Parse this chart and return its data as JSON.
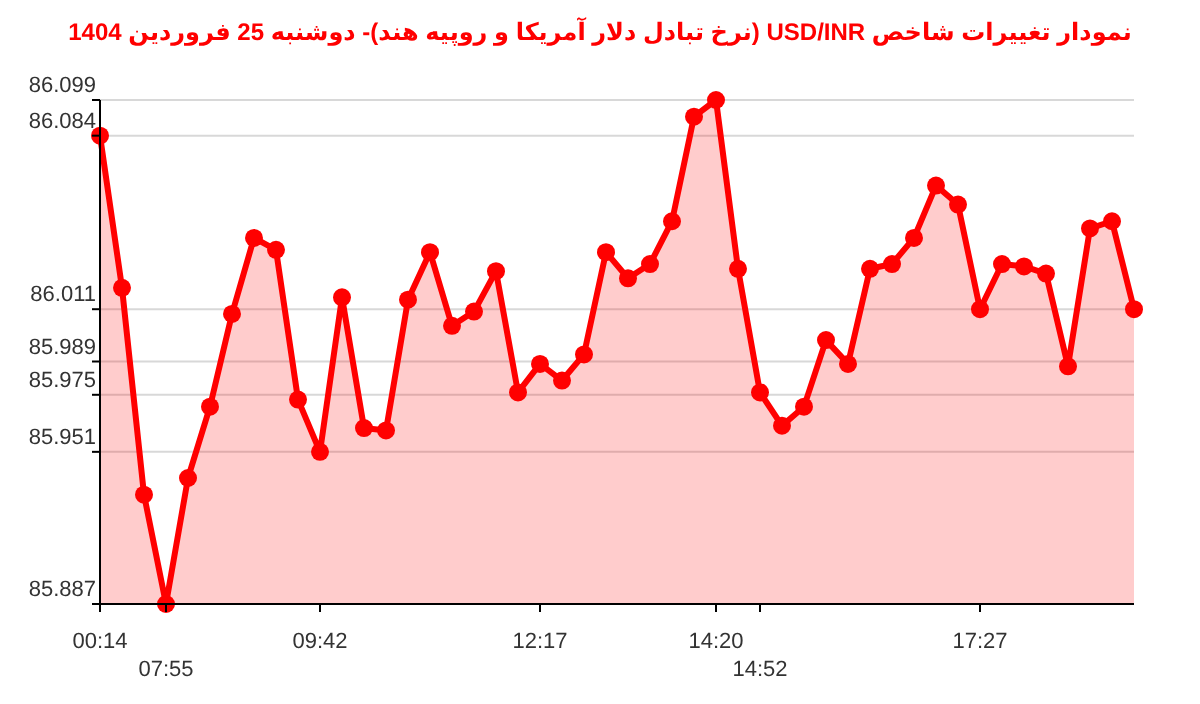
{
  "chart_data": {
    "type": "area",
    "title": "نمودار تغییرات شاخص USD/INR (نرخ تبادل دلار آمریکا و روپیه هند)- دوشنبه  25 فروردین 1404",
    "categories": [
      "00:14",
      null,
      null,
      "07:55",
      null,
      null,
      null,
      null,
      null,
      null,
      "09:42",
      null,
      null,
      null,
      null,
      null,
      null,
      null,
      null,
      null,
      "12:17",
      null,
      null,
      null,
      null,
      null,
      null,
      null,
      "14:20",
      null,
      "14:52",
      null,
      null,
      null,
      null,
      null,
      null,
      null,
      null,
      null,
      "17:27",
      null,
      null,
      null,
      null,
      null,
      null,
      null
    ],
    "series": [
      {
        "color": "#ff0000",
        "values": [
          86.084,
          86.02,
          85.933,
          85.887,
          85.94,
          85.97,
          86.009,
          86.041,
          86.036,
          85.973,
          85.951,
          86.016,
          85.961,
          85.96,
          86.015,
          86.035,
          86.004,
          86.01,
          86.027,
          85.976,
          85.988,
          85.981,
          85.992,
          86.035,
          86.024,
          86.03,
          86.048,
          86.092,
          86.099,
          86.028,
          85.976,
          85.962,
          85.97,
          85.998,
          85.988,
          86.028,
          86.03,
          86.041,
          86.063,
          86.055,
          86.011,
          86.03,
          86.029,
          86.026,
          85.987,
          86.045,
          86.048,
          86.011
        ]
      }
    ],
    "ylim": [
      85.887,
      86.099
    ],
    "yticks": [
      85.887,
      85.951,
      85.975,
      85.989,
      86.011,
      86.084,
      86.099
    ],
    "grid": "y",
    "marker": "circle"
  }
}
